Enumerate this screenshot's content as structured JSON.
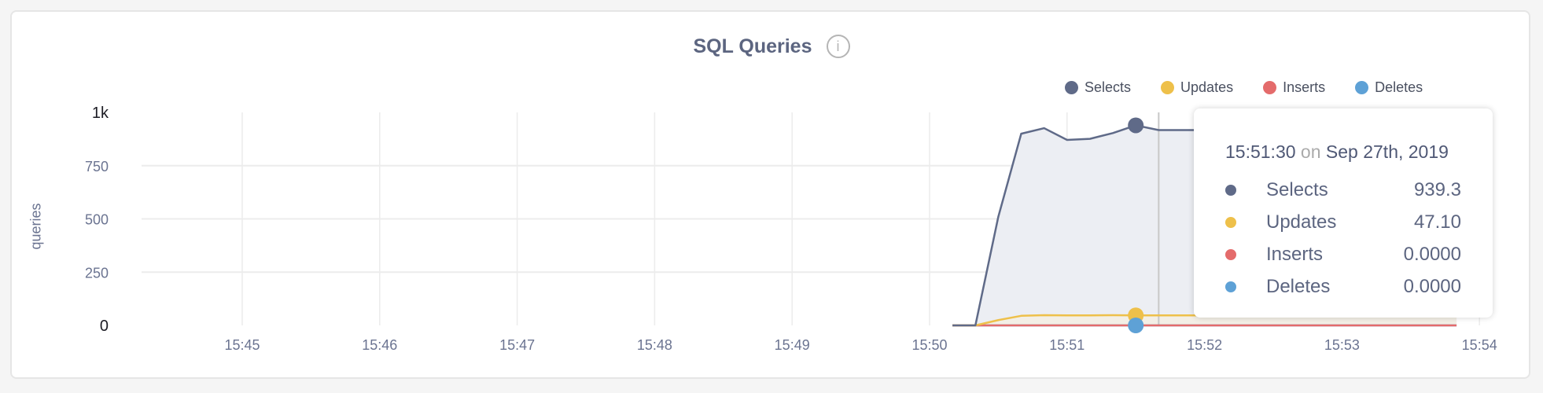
{
  "chart_data": {
    "type": "area",
    "title": "SQL Queries",
    "info_icon": "info-circle-icon",
    "ylabel": "queries",
    "xlabel": "",
    "ylim": [
      0,
      1000
    ],
    "y_ticks": [
      "0",
      "250",
      "500",
      "750",
      "1k"
    ],
    "y_tick_values": [
      0,
      250,
      500,
      750,
      1000
    ],
    "xlim": [
      "15:44:10",
      "15:54:00"
    ],
    "x_ticks": [
      "15:45",
      "15:46",
      "15:47",
      "15:48",
      "15:49",
      "15:50",
      "15:51",
      "15:52",
      "15:53",
      "15:54"
    ],
    "grid": true,
    "legend_position": "top-right",
    "x": [
      "15:50:10",
      "15:50:20",
      "15:50:30",
      "15:50:40",
      "15:50:50",
      "15:51:00",
      "15:51:10",
      "15:51:20",
      "15:51:30",
      "15:51:40",
      "15:51:50"
    ],
    "series": [
      {
        "name": "Selects",
        "color": "#5f6a88",
        "values": [
          0,
          0,
          510,
          900,
          926,
          871,
          876,
          903,
          939.3,
          917,
          917
        ]
      },
      {
        "name": "Updates",
        "color": "#eec04a",
        "values": [
          0,
          0,
          25,
          45,
          48,
          47,
          47,
          48,
          47.1,
          47,
          47
        ]
      },
      {
        "name": "Inserts",
        "color": "#e46b6b",
        "values": [
          0,
          0,
          0,
          0,
          0,
          0,
          0,
          0,
          0,
          0,
          0
        ]
      },
      {
        "name": "Deletes",
        "color": "#5ea1d6",
        "values": [
          0,
          0,
          0,
          0,
          0,
          0,
          0,
          0,
          0,
          0,
          0
        ]
      }
    ],
    "series_extends_to": "15:53:50",
    "highlight_time": "15:51:30",
    "crosshair_time": "15:51:40",
    "tooltip": {
      "time": "15:51:30",
      "on": "on",
      "date": "Sep 27th, 2019",
      "rows": [
        {
          "name": "Selects",
          "value": "939.3"
        },
        {
          "name": "Updates",
          "value": "47.10"
        },
        {
          "name": "Inserts",
          "value": "0.0000"
        },
        {
          "name": "Deletes",
          "value": "0.0000"
        }
      ]
    }
  }
}
